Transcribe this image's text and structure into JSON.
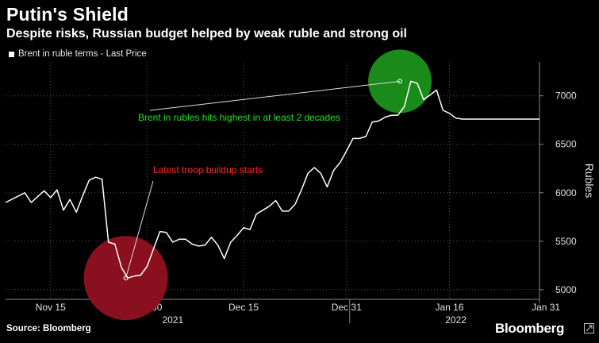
{
  "header": {
    "title": "Putin's Shield",
    "subtitle": "Despite risks, Russian budget helped by weak ruble and strong oil"
  },
  "footer": {
    "source": "Source: Bloomberg",
    "brand": "Bloomberg"
  },
  "colors": {
    "background": "#000000",
    "line": "#ffffff",
    "green_highlight": "#1a8a1a",
    "red_highlight": "#8a1020",
    "green_text": "#22e022",
    "red_text": "#ff2a2a"
  },
  "chart_data": {
    "type": "line",
    "title": "Putin's Shield",
    "subtitle": "Despite risks, Russian budget helped by weak ruble and strong oil",
    "ylabel": "Rubles",
    "xlabel": "",
    "ylim": [
      4900,
      7350
    ],
    "yticks": [
      5000,
      5500,
      6000,
      6500,
      7000
    ],
    "xlim": [
      0,
      83
    ],
    "xticks": [
      {
        "x": 7,
        "label": "Nov 15"
      },
      {
        "x": 22,
        "label": "Nov 30"
      },
      {
        "x": 37,
        "label": "Dec 15"
      },
      {
        "x": 53,
        "label": "Dec 31"
      },
      {
        "x": 69,
        "label": "Jan 16"
      },
      {
        "x": 84,
        "label": "Jan 31"
      }
    ],
    "year_labels": [
      {
        "x": 26,
        "label": "2021"
      },
      {
        "x": 70,
        "label": "2022"
      }
    ],
    "year_divider_x": 53.5,
    "grid": true,
    "legend": [
      {
        "name": "Brent in ruble terms - Last Price",
        "position": "top-left"
      }
    ],
    "series": [
      {
        "name": "Brent in ruble terms - Last Price",
        "x": [
          0,
          3,
          4,
          5,
          6,
          7,
          8,
          9,
          10,
          11,
          12,
          13,
          14,
          15,
          16,
          17,
          18,
          19,
          20,
          21,
          22,
          23,
          24,
          25,
          26,
          27,
          28,
          29,
          30,
          31,
          32,
          33,
          34,
          35,
          36,
          37,
          38,
          39,
          40,
          41,
          42,
          43,
          44,
          45,
          46,
          47,
          48,
          49,
          50,
          51,
          52,
          53,
          54,
          55,
          56,
          57,
          58,
          59,
          60,
          61,
          62,
          63,
          64,
          65,
          66,
          67,
          68,
          69,
          70,
          71,
          72,
          73,
          74,
          75,
          76,
          77,
          78,
          79,
          80,
          81,
          82,
          83
        ],
        "values": [
          5900,
          6000,
          5900,
          5960,
          6020,
          5950,
          6030,
          5820,
          5930,
          5800,
          5970,
          6130,
          6160,
          6140,
          5490,
          5470,
          5230,
          5120,
          5140,
          5150,
          5240,
          5420,
          5600,
          5590,
          5490,
          5520,
          5520,
          5470,
          5450,
          5460,
          5540,
          5460,
          5320,
          5490,
          5560,
          5640,
          5620,
          5780,
          5820,
          5860,
          5920,
          5810,
          5810,
          5880,
          6030,
          6200,
          6260,
          6200,
          6060,
          6230,
          6310,
          6430,
          6560,
          6560,
          6580,
          6730,
          6740,
          6780,
          6800,
          6800,
          6890,
          7150,
          7130,
          6960,
          7010,
          7060,
          6850,
          6820,
          6770,
          6760,
          6760,
          6760,
          6760,
          6760,
          6760,
          6760,
          6760,
          6760,
          6760,
          6760,
          6760,
          6760
        ]
      }
    ],
    "annotations": [
      {
        "text": "Brent in rubles hits highest in at least 2 decades",
        "color": "green",
        "point": {
          "x": 61.3,
          "y": 7150
        }
      },
      {
        "text": "Latest troop buildup starts",
        "color": "red",
        "point": {
          "x": 18.7,
          "y": 5120
        }
      }
    ]
  }
}
